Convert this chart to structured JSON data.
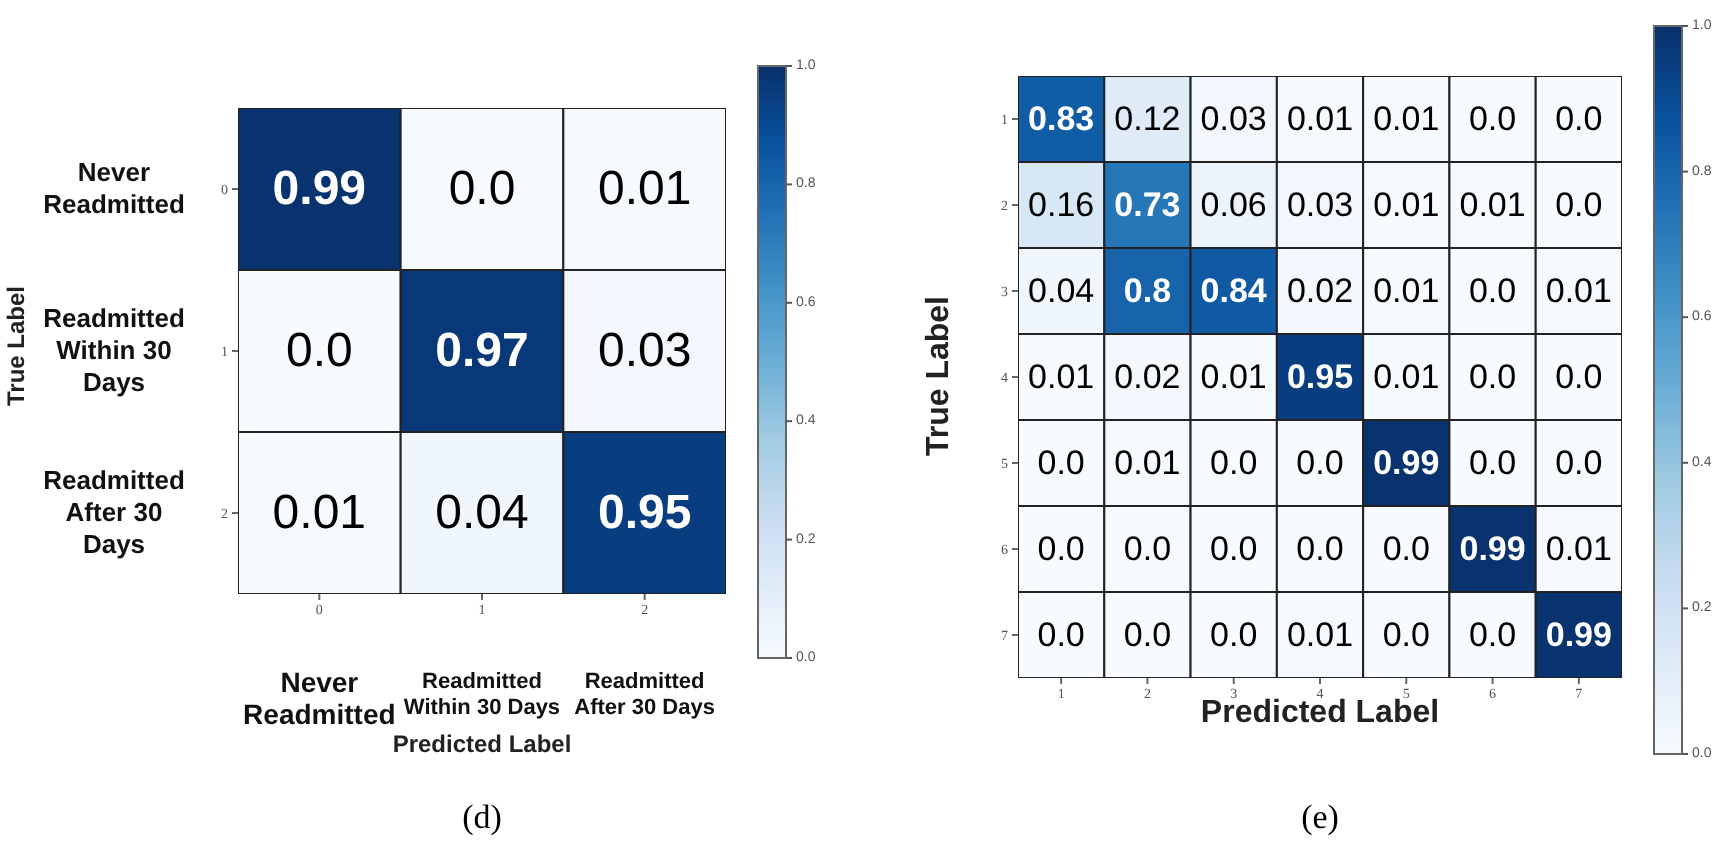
{
  "chart_data": [
    {
      "type": "heatmap",
      "title": "(d)",
      "xlabel": "Predicted Label",
      "ylabel": "True Label",
      "categories": [
        "0",
        "1",
        "2"
      ],
      "y_categories": [
        "0",
        "1",
        "2"
      ],
      "y2_categories": [
        "Never Readmitted",
        "Readmitted Within 30 Days",
        "Readmitted After 30 Days"
      ],
      "annotations": [
        "Never Readmitted",
        "Readmitted Within 30 Days",
        "Readmitted After 30 Days"
      ],
      "cells": [
        [
          0.99,
          0.0,
          0.01
        ],
        [
          0.0,
          0.97,
          0.03
        ],
        [
          0.01,
          0.04,
          0.95
        ]
      ],
      "cell_labels": [
        [
          "0.99",
          "0.0",
          "0.01"
        ],
        [
          "0.0",
          "0.97",
          "0.03"
        ],
        [
          "0.01",
          "0.04",
          "0.95"
        ]
      ],
      "clim": [
        0,
        1
      ],
      "cticks": [
        {
          "value": 0,
          "label": "0.0"
        },
        {
          "value": 0.2,
          "label": "0.2"
        },
        {
          "value": 0.4,
          "label": "0.4"
        },
        {
          "value": 0.6,
          "label": "0.6"
        },
        {
          "value": 0.8,
          "label": "0.8"
        },
        {
          "value": 1,
          "label": "1.0"
        }
      ]
    },
    {
      "type": "heatmap",
      "title": "(e)",
      "xlabel": "Predicted Label",
      "ylabel": "True Label",
      "categories": [
        "1",
        "2",
        "3",
        "4",
        "5",
        "6",
        "7"
      ],
      "y_categories": [
        "1",
        "2",
        "3",
        "4",
        "5",
        "6",
        "7"
      ],
      "cells": [
        [
          0.83,
          0.12,
          0.03,
          0.01,
          0.01,
          0.0,
          0.0
        ],
        [
          0.16,
          0.73,
          0.06,
          0.03,
          0.01,
          0.01,
          0.0
        ],
        [
          0.04,
          0.8,
          0.84,
          0.02,
          0.01,
          0.0,
          0.01
        ],
        [
          0.01,
          0.02,
          0.01,
          0.95,
          0.01,
          0.0,
          0.0
        ],
        [
          0.0,
          0.01,
          0.0,
          0.0,
          0.99,
          0.0,
          0.0
        ],
        [
          0.0,
          0.0,
          0.0,
          0.0,
          0.0,
          0.99,
          0.01
        ],
        [
          0.0,
          0.0,
          0.0,
          0.01,
          0.0,
          0.0,
          0.99
        ]
      ],
      "cell_labels": [
        [
          "0.83",
          "0.12",
          "0.03",
          "0.01",
          "0.01",
          "0.0",
          "0.0"
        ],
        [
          "0.16",
          "0.73",
          "0.06",
          "0.03",
          "0.01",
          "0.01",
          "0.0"
        ],
        [
          "0.04",
          "0.8",
          "0.84",
          "0.02",
          "0.01",
          "0.0",
          "0.01"
        ],
        [
          "0.01",
          "0.02",
          "0.01",
          "0.95",
          "0.01",
          "0.0",
          "0.0"
        ],
        [
          "0.0",
          "0.01",
          "0.0",
          "0.0",
          "0.99",
          "0.0",
          "0.0"
        ],
        [
          "0.0",
          "0.0",
          "0.0",
          "0.0",
          "0.0",
          "0.99",
          "0.01"
        ],
        [
          "0.0",
          "0.0",
          "0.0",
          "0.01",
          "0.0",
          "0.0",
          "0.99"
        ]
      ],
      "clim": [
        0,
        1
      ],
      "cticks": [
        {
          "value": 0,
          "label": "0.0"
        },
        {
          "value": 0.2,
          "label": "0.2"
        },
        {
          "value": 0.4,
          "label": "0.4"
        },
        {
          "value": 0.6,
          "label": "0.6"
        },
        {
          "value": 0.8,
          "label": "0.8"
        },
        {
          "value": 1,
          "label": "1.0"
        }
      ]
    }
  ]
}
